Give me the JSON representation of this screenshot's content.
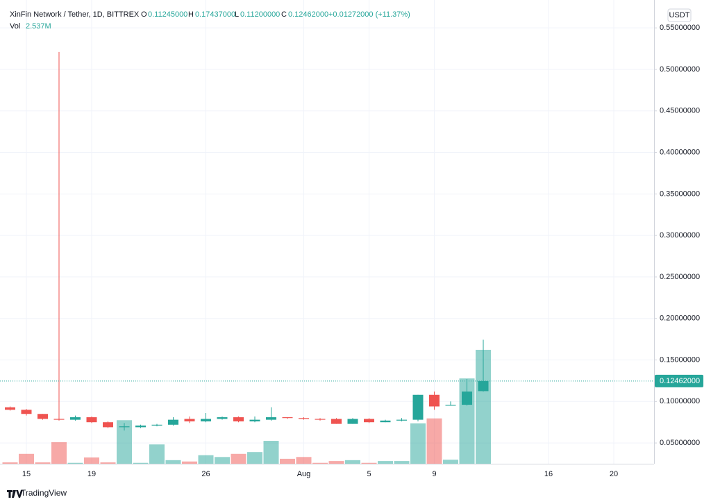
{
  "chart_data": {
    "type": "candlestick",
    "header": {
      "title": "XinFin Network / Tether, 1D, BITTREX",
      "open_key": "O",
      "open": "0.11245000",
      "high_key": "H",
      "high": "0.17437000",
      "low_key": "L",
      "low": "0.11200000",
      "close_key": "C",
      "close": "0.12462000",
      "change": "+0.01272000 (+11.37%)",
      "volume_key": "Vol",
      "volume": "2.537M"
    },
    "currency": "USDT",
    "brand": "TradingView",
    "categories": [
      null,
      "15",
      null,
      null,
      null,
      "19",
      null,
      null,
      null,
      null,
      null,
      null,
      "26",
      null,
      null,
      null,
      null,
      null,
      "Aug",
      null,
      null,
      null,
      "5",
      null,
      null,
      null,
      "9",
      null,
      null,
      null,
      null,
      null,
      null,
      "16",
      null,
      null,
      null,
      "20",
      null,
      null
    ],
    "open": [
      0.093,
      0.09,
      0.085,
      0.079,
      0.078,
      0.081,
      0.075,
      0.069,
      0.069,
      0.071,
      0.072,
      0.079,
      0.076,
      0.079,
      0.081,
      0.076,
      0.078,
      0.081,
      0.08,
      0.079,
      0.079,
      0.073,
      0.079,
      0.075,
      0.077,
      0.078,
      0.108,
      0.095,
      0.096,
      0.11245,
      null,
      null,
      null,
      null,
      null,
      null,
      null,
      null,
      null,
      null
    ],
    "high": [
      0.094,
      0.091,
      0.085,
      0.521,
      0.083,
      0.082,
      0.076,
      0.074,
      0.072,
      0.073,
      0.081,
      0.082,
      0.086,
      0.082,
      0.082,
      0.082,
      0.093,
      0.081,
      0.081,
      0.08,
      0.08,
      0.08,
      0.08,
      0.078,
      0.08,
      0.108,
      0.112,
      0.1,
      0.127,
      0.17437,
      null,
      null,
      null,
      null,
      null,
      null,
      null,
      null,
      null,
      null
    ],
    "low": [
      0.089,
      0.083,
      0.078,
      0.077,
      0.077,
      0.074,
      0.068,
      0.065,
      0.068,
      0.07,
      0.071,
      0.074,
      0.075,
      0.078,
      0.075,
      0.075,
      0.077,
      0.079,
      0.078,
      0.077,
      0.073,
      0.073,
      0.074,
      0.075,
      0.076,
      0.076,
      0.09,
      0.095,
      0.095,
      0.112,
      null,
      null,
      null,
      null,
      null,
      null,
      null,
      null,
      null,
      null
    ],
    "close": [
      0.09,
      0.085,
      0.079,
      0.078,
      0.081,
      0.075,
      0.069,
      0.07,
      0.071,
      0.072,
      0.078,
      0.076,
      0.079,
      0.081,
      0.076,
      0.078,
      0.081,
      0.08,
      0.079,
      0.078,
      0.073,
      0.079,
      0.075,
      0.077,
      0.078,
      0.108,
      0.094,
      0.096,
      0.112,
      0.12462,
      null,
      null,
      null,
      null,
      null,
      null,
      null,
      null,
      null,
      null
    ],
    "volume": [
      30000,
      220000,
      30000,
      480000,
      20000,
      140000,
      30000,
      970000,
      20000,
      430000,
      80000,
      50000,
      190000,
      150000,
      220000,
      260000,
      510000,
      110000,
      150000,
      20000,
      60000,
      80000,
      20000,
      60000,
      60000,
      900000,
      1010000,
      90000,
      1900000,
      2537000,
      null,
      null,
      null,
      null,
      null,
      null,
      null,
      null,
      null,
      null
    ],
    "volume_ylim": [
      0,
      10330000
    ],
    "up_color": "#26a69a",
    "down_color": "#ef5350",
    "ylim": [
      0.025,
      0.5836
    ],
    "yticks": [
      {
        "value": 0.05,
        "label": "0.05000000"
      },
      {
        "value": 0.1,
        "label": "0.10000000"
      },
      {
        "value": 0.15,
        "label": "0.15000000"
      },
      {
        "value": 0.2,
        "label": "0.20000000"
      },
      {
        "value": 0.25,
        "label": "0.25000000"
      },
      {
        "value": 0.3,
        "label": "0.30000000"
      },
      {
        "value": 0.35,
        "label": "0.35000000"
      },
      {
        "value": 0.4,
        "label": "0.40000000"
      },
      {
        "value": 0.45,
        "label": "0.45000000"
      },
      {
        "value": 0.5,
        "label": "0.50000000"
      },
      {
        "value": 0.55,
        "label": "0.55000000"
      }
    ],
    "last_price": 0.12462,
    "grid": true
  }
}
